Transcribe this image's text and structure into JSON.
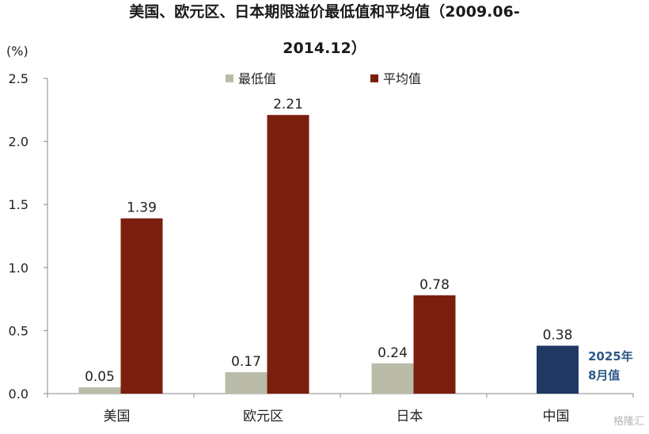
{
  "chart_data": {
    "type": "bar",
    "title_line1": "美国、欧元区、日本期限溢价最低值和平均值（2009.06-",
    "title_line2": "2014.12）",
    "unit_label": "(%)",
    "categories": [
      "美国",
      "欧元区",
      "日本",
      "中国"
    ],
    "series": [
      {
        "name": "最低值",
        "color": "#BBBBAA",
        "values": [
          0.05,
          0.17,
          0.24,
          null
        ]
      },
      {
        "name": "平均值",
        "color": "#7A1F0E",
        "values": [
          1.39,
          2.21,
          0.78,
          null
        ]
      }
    ],
    "extra_bar": {
      "category": "中国",
      "value": 0.38,
      "color": "#1F3864",
      "annotation_lines": [
        "2025年",
        "8月值"
      ],
      "annotation_color": "#2E5A87"
    },
    "ylim": [
      0,
      2.5
    ],
    "yticks": [
      0.0,
      0.5,
      1.0,
      1.5,
      2.0,
      2.5
    ],
    "ytick_labels": [
      "0.0",
      "0.5",
      "1.0",
      "1.5",
      "2.0",
      "2.5"
    ],
    "legend_position": "top-center",
    "grid": false
  },
  "watermark": "格隆汇"
}
